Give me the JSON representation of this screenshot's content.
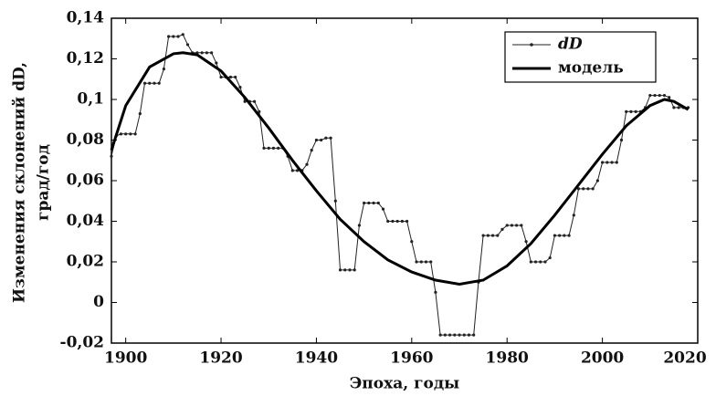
{
  "chart_data": {
    "type": "line",
    "x_label": "Эпоха, годы",
    "y_label": [
      "Изменения склонений dD,",
      "град/год"
    ],
    "xlim": [
      1897,
      2020
    ],
    "xticks": [
      1900,
      1920,
      1940,
      1960,
      1980,
      2000,
      2020
    ],
    "ylim": [
      -0.02,
      0.14
    ],
    "yticks": [
      {
        "value": -0.02,
        "label": "-0,02"
      },
      0,
      {
        "value": 0.02,
        "label": "0,02"
      },
      {
        "value": 0.04,
        "label": "0,04"
      },
      {
        "value": 0.06,
        "label": "0,06"
      },
      {
        "value": 0.08,
        "label": "0,08"
      },
      {
        "value": 0.1,
        "label": "0,1"
      },
      {
        "value": 0.12,
        "label": "0,12"
      },
      {
        "value": 0.14,
        "label": "0,14"
      }
    ],
    "legend": "upper right",
    "series": [
      {
        "name": "dD",
        "color": "#222222",
        "markers": true,
        "x": [
          1897,
          1898,
          1899,
          1900,
          1901,
          1902,
          1903,
          1904,
          1905,
          1906,
          1907,
          1908,
          1909,
          1910,
          1911,
          1912,
          1913,
          1914,
          1915,
          1916,
          1917,
          1918,
          1919,
          1920,
          1921,
          1922,
          1923,
          1924,
          1925,
          1926,
          1927,
          1928,
          1929,
          1930,
          1931,
          1932,
          1933,
          1934,
          1935,
          1936,
          1937,
          1938,
          1939,
          1940,
          1941,
          1942,
          1943,
          1944,
          1945,
          1946,
          1947,
          1948,
          1949,
          1950,
          1951,
          1952,
          1953,
          1954,
          1955,
          1956,
          1957,
          1958,
          1959,
          1960,
          1961,
          1962,
          1963,
          1964,
          1965,
          1966,
          1967,
          1968,
          1969,
          1970,
          1971,
          1972,
          1973,
          1974,
          1975,
          1976,
          1977,
          1978,
          1979,
          1980,
          1981,
          1982,
          1983,
          1984,
          1985,
          1986,
          1987,
          1988,
          1989,
          1990,
          1991,
          1992,
          1993,
          1994,
          1995,
          1996,
          1997,
          1998,
          1999,
          2000,
          2001,
          2002,
          2003,
          2004,
          2005,
          2006,
          2007,
          2008,
          2009,
          2010,
          2011,
          2012,
          2013,
          2014,
          2015,
          2016,
          2017,
          2018
        ],
        "values": [
          0.072,
          0.082,
          0.083,
          0.083,
          0.083,
          0.083,
          0.093,
          0.108,
          0.108,
          0.108,
          0.108,
          0.115,
          0.131,
          0.131,
          0.131,
          0.132,
          0.127,
          0.123,
          0.123,
          0.123,
          0.123,
          0.123,
          0.118,
          0.111,
          0.111,
          0.111,
          0.111,
          0.106,
          0.099,
          0.099,
          0.099,
          0.094,
          0.076,
          0.076,
          0.076,
          0.076,
          0.076,
          0.072,
          0.065,
          0.065,
          0.065,
          0.068,
          0.075,
          0.08,
          0.08,
          0.081,
          0.081,
          0.05,
          0.016,
          0.016,
          0.016,
          0.016,
          0.038,
          0.049,
          0.049,
          0.049,
          0.049,
          0.046,
          0.04,
          0.04,
          0.04,
          0.04,
          0.04,
          0.03,
          0.02,
          0.02,
          0.02,
          0.02,
          0.005,
          -0.016,
          -0.016,
          -0.016,
          -0.016,
          -0.016,
          -0.016,
          -0.016,
          -0.016,
          0.01,
          0.033,
          0.033,
          0.033,
          0.033,
          0.036,
          0.038,
          0.038,
          0.038,
          0.038,
          0.03,
          0.02,
          0.02,
          0.02,
          0.02,
          0.022,
          0.033,
          0.033,
          0.033,
          0.033,
          0.043,
          0.056,
          0.056,
          0.056,
          0.056,
          0.06,
          0.069,
          0.069,
          0.069,
          0.069,
          0.08,
          0.094,
          0.094,
          0.094,
          0.094,
          0.096,
          0.102,
          0.102,
          0.102,
          0.102,
          0.101,
          0.096,
          0.096,
          0.096,
          0.096
        ]
      },
      {
        "name": "модель",
        "color": "#000000",
        "markers": false,
        "x": [
          1897,
          1900,
          1905,
          1910,
          1912,
          1915,
          1920,
          1925,
          1930,
          1935,
          1940,
          1945,
          1950,
          1955,
          1960,
          1965,
          1970,
          1975,
          1980,
          1985,
          1990,
          1995,
          2000,
          2005,
          2010,
          2013,
          2015,
          2018
        ],
        "values": [
          0.075,
          0.097,
          0.116,
          0.1225,
          0.123,
          0.122,
          0.114,
          0.101,
          0.086,
          0.07,
          0.055,
          0.041,
          0.03,
          0.021,
          0.015,
          0.011,
          0.009,
          0.011,
          0.018,
          0.029,
          0.043,
          0.058,
          0.073,
          0.087,
          0.097,
          0.1,
          0.099,
          0.095
        ]
      }
    ]
  }
}
